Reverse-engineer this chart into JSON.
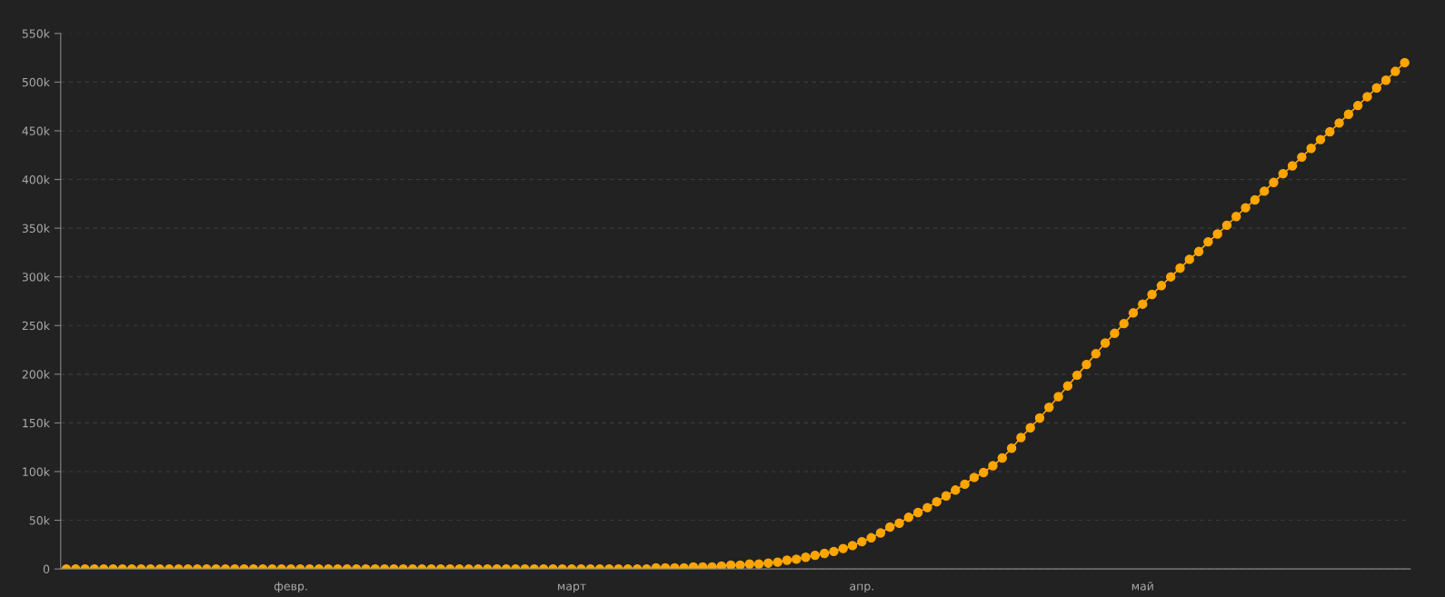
{
  "chart_data": {
    "type": "line",
    "marker": "circle",
    "line_style": "solid",
    "grid": "y",
    "ylim": [
      0,
      550000
    ],
    "yticks": [
      0,
      {
        "value": 50000,
        "label": "50k"
      },
      {
        "value": 100000,
        "label": "100k"
      },
      {
        "value": 150000,
        "label": "150k"
      },
      {
        "value": 200000,
        "label": "200k"
      },
      {
        "value": 250000,
        "label": "250k"
      },
      {
        "value": 300000,
        "label": "300k"
      },
      {
        "value": 350000,
        "label": "350k"
      },
      {
        "value": 400000,
        "label": "400k"
      },
      {
        "value": 450000,
        "label": "450k"
      },
      {
        "value": 500000,
        "label": "500k"
      },
      {
        "value": 550000,
        "label": "550k"
      }
    ],
    "categories": [
      null,
      null,
      null,
      null,
      null,
      null,
      null,
      null,
      null,
      null,
      null,
      null,
      null,
      null,
      null,
      null,
      null,
      null,
      null,
      null,
      null,
      null,
      null,
      null,
      "февр.",
      null,
      null,
      null,
      null,
      null,
      null,
      null,
      null,
      null,
      null,
      null,
      null,
      null,
      null,
      null,
      null,
      null,
      null,
      null,
      null,
      null,
      null,
      null,
      null,
      null,
      null,
      null,
      null,
      null,
      "март",
      null,
      null,
      null,
      null,
      null,
      null,
      null,
      null,
      null,
      null,
      null,
      null,
      null,
      null,
      null,
      null,
      null,
      null,
      null,
      null,
      null,
      null,
      null,
      null,
      null,
      null,
      null,
      null,
      null,
      null,
      "апр.",
      null,
      null,
      null,
      null,
      null,
      null,
      null,
      null,
      null,
      null,
      null,
      null,
      null,
      null,
      null,
      null,
      null,
      null,
      null,
      null,
      null,
      null,
      null,
      null,
      null,
      null,
      null,
      null,
      null,
      "май",
      null,
      null,
      null,
      null,
      null,
      null,
      null,
      null,
      null,
      null,
      null,
      null,
      null,
      null,
      null,
      null,
      null,
      null,
      null,
      null,
      null,
      null,
      null,
      null,
      null,
      null,
      null,
      null
    ],
    "series": [
      {
        "color": "#ffa500",
        "values": [
          0,
          0,
          0,
          0,
          0,
          0,
          0,
          0,
          0,
          0,
          0,
          0,
          0,
          0,
          0,
          0,
          0,
          0,
          0,
          0,
          0,
          0,
          0,
          0,
          0,
          0,
          0,
          0,
          0,
          0,
          0,
          0,
          0,
          0,
          0,
          0,
          0,
          0,
          0,
          0,
          0,
          0,
          0,
          0,
          0,
          0,
          0,
          0,
          0,
          0,
          0,
          0,
          0,
          0,
          0,
          0,
          0,
          0,
          0,
          0,
          0,
          0,
          0,
          1000,
          1000,
          1000,
          1000,
          2000,
          2000,
          2000,
          3000,
          4000,
          4000,
          5000,
          5000,
          6000,
          7000,
          9000,
          10000,
          12000,
          14000,
          16000,
          18000,
          21000,
          24000,
          28000,
          32000,
          37000,
          43000,
          47000,
          53000,
          58000,
          63000,
          69000,
          75000,
          81000,
          87000,
          94000,
          99000,
          106000,
          114000,
          124000,
          135000,
          145000,
          155000,
          166000,
          177000,
          188000,
          199000,
          210000,
          221000,
          232000,
          242000,
          252000,
          263000,
          272000,
          282000,
          291000,
          300000,
          309000,
          318000,
          326000,
          336000,
          344000,
          353000,
          362000,
          371000,
          379000,
          388000,
          397000,
          406000,
          414000,
          423000,
          432000,
          441000,
          449000,
          458000,
          467000,
          476000,
          485000,
          494000,
          502000,
          511000,
          520000
        ]
      }
    ]
  }
}
